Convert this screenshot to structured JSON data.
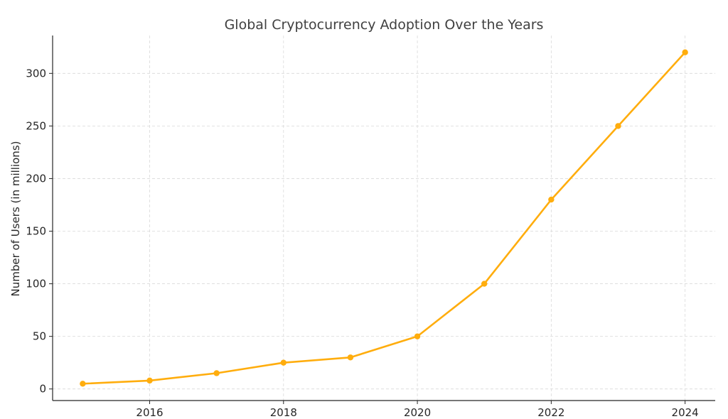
{
  "chart_data": {
    "type": "line",
    "title": "Global Cryptocurrency Adoption Over the Years",
    "xlabel": "",
    "ylabel": "Number of Users (in millions)",
    "x": [
      2015,
      2016,
      2017,
      2018,
      2019,
      2020,
      2021,
      2022,
      2023,
      2024
    ],
    "series": [
      {
        "values": [
          5,
          8,
          15,
          25,
          30,
          50,
          100,
          180,
          250,
          320
        ]
      }
    ],
    "xlim": [
      2014.55,
      2024.45
    ],
    "ylim": [
      -11,
      336
    ],
    "xticks": [
      2016,
      2018,
      2020,
      2022,
      2024
    ],
    "yticks": [
      0,
      50,
      100,
      150,
      200,
      250,
      300
    ],
    "grid": true,
    "colors": {
      "line": "#ffad0d",
      "grid": "#d9d9d9",
      "axis": "#262626"
    }
  }
}
